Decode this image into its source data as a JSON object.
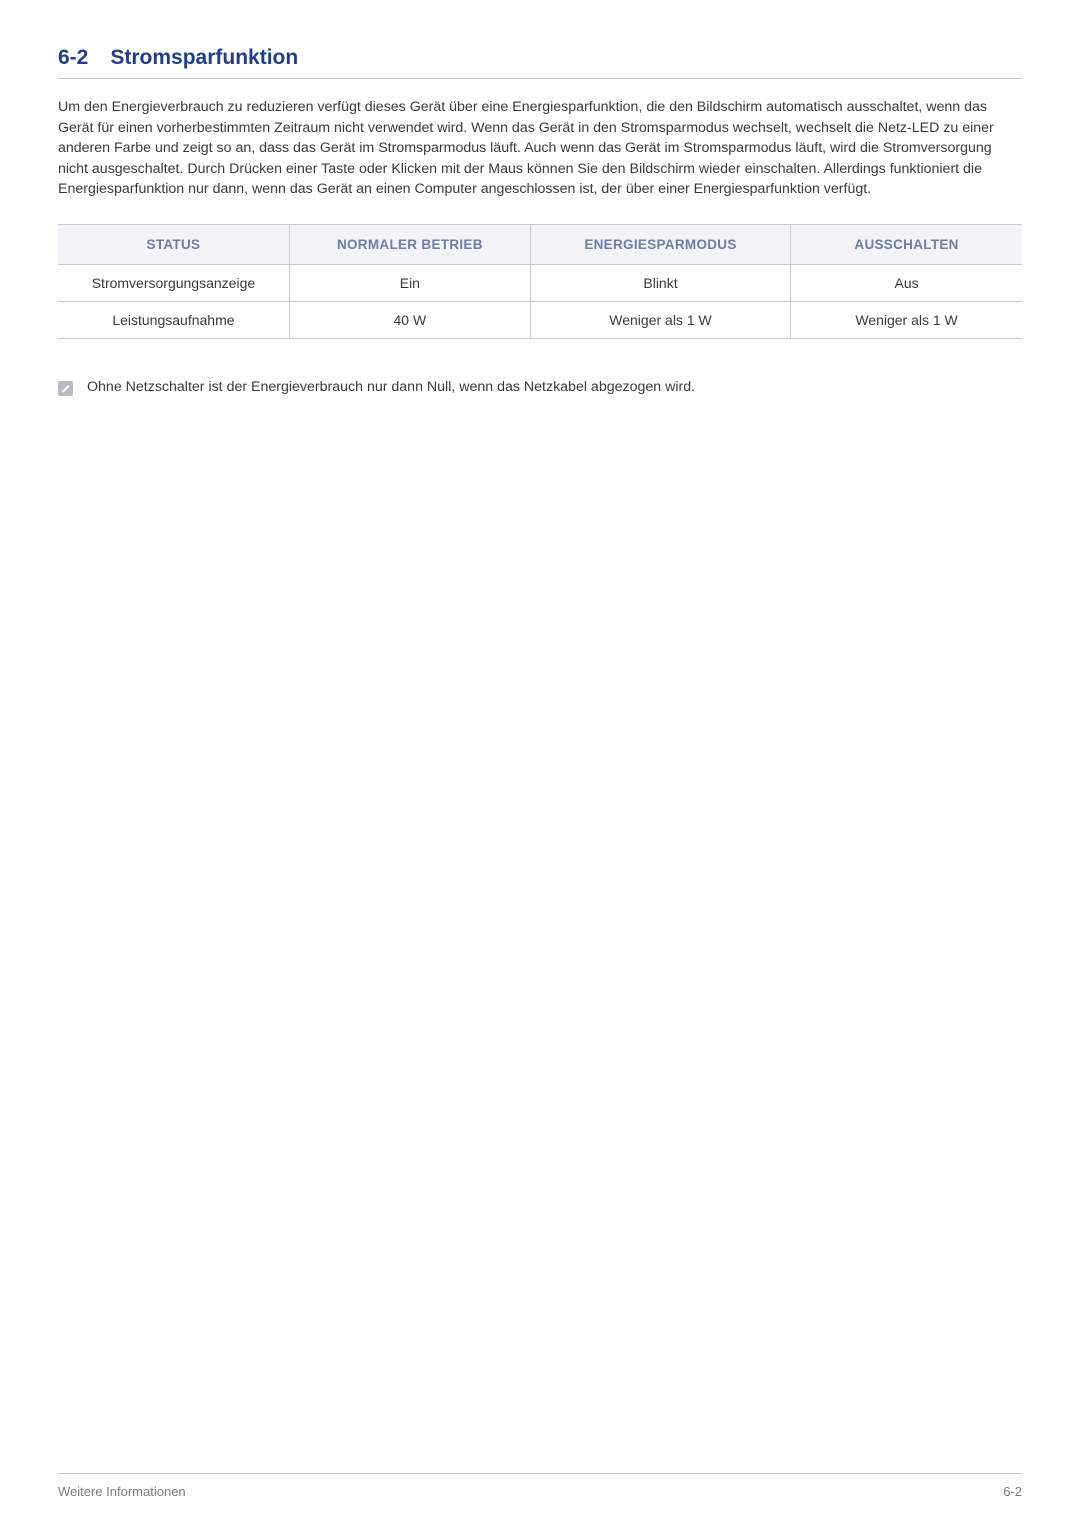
{
  "heading": {
    "number": "6-2",
    "title": "Stromsparfunktion"
  },
  "paragraph": "Um den Energieverbrauch zu reduzieren verfügt dieses Gerät über eine Energiesparfunktion, die den Bildschirm automatisch ausschaltet, wenn das Gerät für einen vorherbestimmten Zeitraum nicht verwendet wird. Wenn das Gerät in den Stromsparmodus wechselt, wechselt die Netz-LED zu einer anderen Farbe und zeigt so an, dass das Gerät im Stromsparmodus läuft. Auch wenn das Gerät im Stromsparmodus läuft, wird die Stromversorgung nicht ausgeschaltet. Durch Drücken einer Taste oder Klicken mit der Maus können Sie den Bildschirm wieder einschalten. Allerdings funktioniert die Energiesparfunktion nur dann, wenn das Gerät an einen Computer angeschlossen ist, der über einer Energiesparfunktion verfügt.",
  "table": {
    "headers": {
      "c0": "STATUS",
      "c1": "NORMALER BETRIEB",
      "c2": "ENERGIESPARMODUS",
      "c3": "AUSSCHALTEN"
    },
    "rows": [
      {
        "c0": "Stromversorgungsanzeige",
        "c1": "Ein",
        "c2": "Blinkt",
        "c3": "Aus"
      },
      {
        "c0": "Leistungsaufnahme",
        "c1": "40 W",
        "c2": "Weniger als 1 W",
        "c3": "Weniger als 1 W"
      }
    ],
    "header_bg": "#f3f3f7",
    "header_color": "#6f7ba8",
    "border_color": "#c9c9d0",
    "col_widths": [
      "24%",
      "25%",
      "27%",
      "24%"
    ]
  },
  "note": "Ohne Netzschalter ist der Energieverbrauch nur dann Null, wenn das Netzkabel abgezogen wird.",
  "footer": {
    "left": "Weitere Informationen",
    "right": "6-2"
  },
  "colors": {
    "heading": "#1f3d8f",
    "body": "#3a3a3a",
    "footer": "#7a7a7a"
  }
}
